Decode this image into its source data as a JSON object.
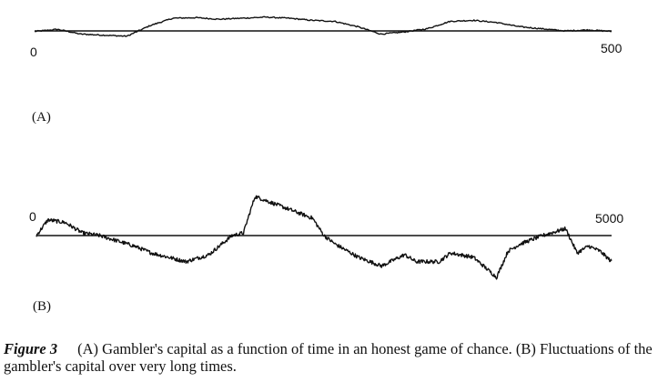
{
  "chart_data": [
    {
      "panel": "(A)",
      "type": "line",
      "title": "",
      "xlabel": "",
      "ylabel": "",
      "x_start_label": "0",
      "x_end_label": "500",
      "xlim": [
        0,
        500
      ],
      "ylim": [
        -14,
        22
      ],
      "grid": false,
      "baseline_y": 0,
      "series": [
        {
          "x": [
            0,
            20,
            40,
            60,
            80,
            100,
            120,
            140,
            160,
            180,
            200,
            220,
            240,
            260,
            280,
            300,
            320,
            340,
            360,
            380,
            400,
            420,
            440,
            460,
            480,
            500
          ],
          "y": [
            -0.5,
            1.5,
            -3,
            -4,
            -5,
            5,
            12,
            12.5,
            11,
            12,
            13,
            12,
            10,
            9,
            4,
            -3,
            -1,
            2,
            9,
            10,
            8,
            4,
            2,
            0,
            1,
            -0.5
          ]
        }
      ]
    },
    {
      "panel": "(B)",
      "type": "line",
      "title": "",
      "xlabel": "",
      "ylabel": "",
      "x_start_label": "0",
      "x_end_label": "5000",
      "xlim": [
        0,
        5000
      ],
      "ylim": [
        -60,
        55
      ],
      "grid": false,
      "baseline_y": 0,
      "series": [
        {
          "x": [
            0,
            100,
            250,
            400,
            550,
            700,
            850,
            1000,
            1150,
            1300,
            1500,
            1700,
            1800,
            1900,
            2000,
            2200,
            2400,
            2500,
            2600,
            2800,
            3000,
            3200,
            3300,
            3500,
            3600,
            3800,
            4000,
            4100,
            4200,
            4400,
            4600,
            4700,
            4800,
            4900,
            5000
          ],
          "y": [
            0,
            18,
            15,
            3,
            0,
            -6,
            -12,
            -20,
            -25,
            -30,
            -22,
            0,
            3,
            45,
            40,
            30,
            20,
            0,
            -10,
            -25,
            -35,
            -22,
            -30,
            -30,
            -20,
            -25,
            -48,
            -18,
            -10,
            0,
            8,
            -20,
            -12,
            -18,
            -30
          ]
        }
      ]
    }
  ],
  "panel_labels": [
    "(A)",
    "(B)"
  ],
  "caption": {
    "label": "Figure 3",
    "text": "(A) Gambler's capital as a function of time in an honest game of chance. (B) Fluctuations of the gambler's capital over very long times."
  }
}
